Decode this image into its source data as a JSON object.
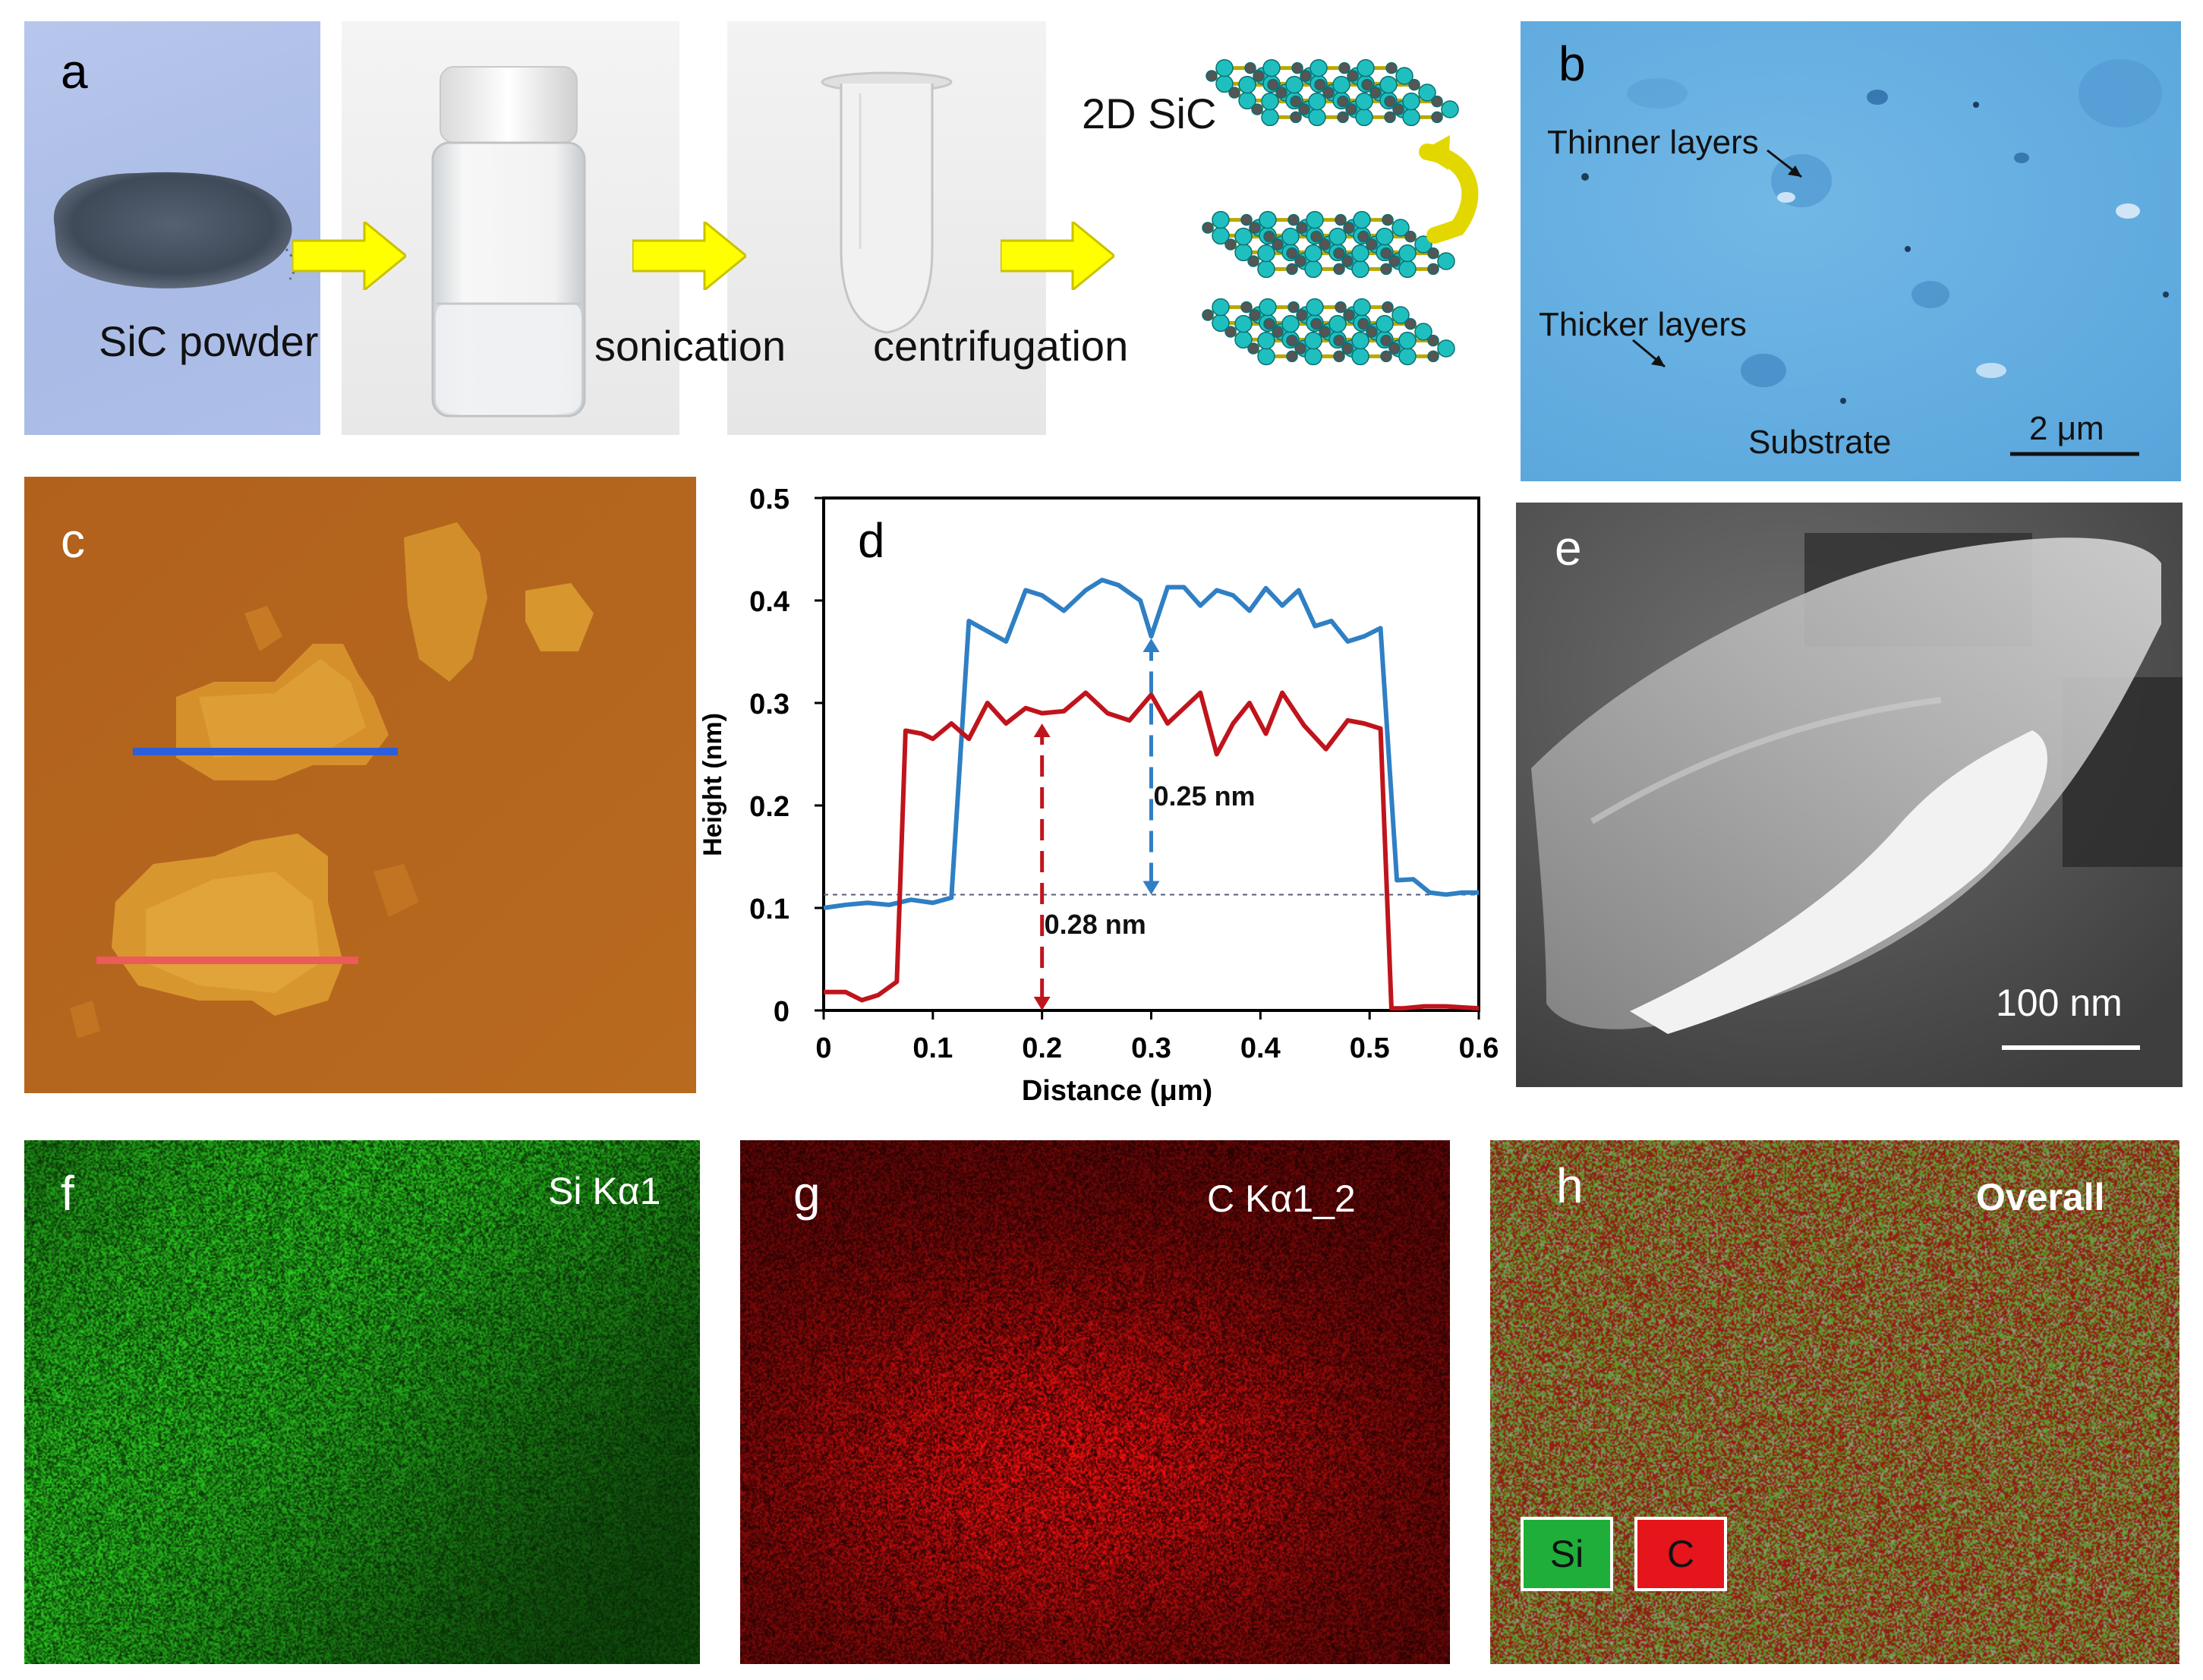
{
  "panels": {
    "a": {
      "letter": "a",
      "captions": {
        "powder": "SiC powder",
        "sonication": "sonication",
        "centrifugation": "centrifugation",
        "material": "2D SiC"
      }
    },
    "b": {
      "letter": "b",
      "labels": {
        "thinner": "Thinner layers",
        "thicker": "Thicker layers",
        "substrate": "Substrate"
      },
      "scale_bar": "2 μm"
    },
    "c": {
      "letter": "c"
    },
    "d": {
      "letter": "d"
    },
    "e": {
      "letter": "e",
      "scale_bar": "100 nm"
    },
    "f": {
      "letter": "f",
      "label": "Si Kα1"
    },
    "g": {
      "letter": "g",
      "label": "C Kα1_2"
    },
    "h": {
      "letter": "h",
      "label": "Overall",
      "legend": [
        "Si",
        "C"
      ]
    }
  },
  "colors": {
    "blue_profile": "#2f7fc4",
    "red_profile": "#c0141c",
    "afm_brown": "#b8621a",
    "si_green": "#1fae3a",
    "c_red": "#e4151b",
    "arrow_yellow": "#ffff00"
  },
  "chart_data": {
    "type": "line",
    "xlabel": "Distance (μm)",
    "ylabel": "Height (nm)",
    "xlim": [
      0,
      0.6
    ],
    "ylim": [
      0,
      0.5
    ],
    "xticks": [
      "0",
      "0.1",
      "0.2",
      "0.3",
      "0.4",
      "0.5",
      "0.6"
    ],
    "yticks": [
      "0",
      "0.1",
      "0.2",
      "0.3",
      "0.4",
      "0.5"
    ],
    "baseline_y": 0.113,
    "annotations": [
      {
        "text": "0.25 nm",
        "x": 0.3,
        "y_from": 0.113,
        "y_to": 0.363,
        "color": "blue"
      },
      {
        "text": "0.28 nm",
        "x": 0.2,
        "y_from": 0.0,
        "y_to": 0.28,
        "color": "red"
      }
    ],
    "series": [
      {
        "color": "blue",
        "x": [
          0,
          0.02,
          0.04,
          0.06,
          0.08,
          0.1,
          0.117,
          0.133,
          0.15,
          0.167,
          0.185,
          0.2,
          0.22,
          0.24,
          0.255,
          0.27,
          0.29,
          0.3,
          0.315,
          0.33,
          0.345,
          0.36,
          0.375,
          0.39,
          0.405,
          0.42,
          0.435,
          0.45,
          0.465,
          0.48,
          0.495,
          0.51,
          0.525,
          0.54,
          0.555,
          0.57,
          0.585,
          0.6
        ],
        "y": [
          0.1,
          0.103,
          0.105,
          0.103,
          0.108,
          0.105,
          0.11,
          0.38,
          0.37,
          0.36,
          0.41,
          0.405,
          0.39,
          0.41,
          0.42,
          0.415,
          0.4,
          0.365,
          0.413,
          0.413,
          0.395,
          0.41,
          0.405,
          0.39,
          0.412,
          0.395,
          0.41,
          0.375,
          0.38,
          0.36,
          0.365,
          0.373,
          0.127,
          0.128,
          0.115,
          0.113,
          0.115,
          0.115
        ]
      },
      {
        "color": "red",
        "x": [
          0,
          0.02,
          0.035,
          0.05,
          0.067,
          0.075,
          0.09,
          0.1,
          0.117,
          0.133,
          0.15,
          0.167,
          0.185,
          0.2,
          0.22,
          0.24,
          0.26,
          0.28,
          0.3,
          0.315,
          0.33,
          0.345,
          0.36,
          0.375,
          0.39,
          0.405,
          0.42,
          0.44,
          0.46,
          0.48,
          0.495,
          0.51,
          0.52,
          0.53,
          0.55,
          0.57,
          0.585,
          0.6
        ],
        "y": [
          0.018,
          0.018,
          0.01,
          0.015,
          0.028,
          0.273,
          0.27,
          0.265,
          0.28,
          0.265,
          0.3,
          0.28,
          0.295,
          0.29,
          0.292,
          0.31,
          0.29,
          0.283,
          0.308,
          0.28,
          0.295,
          0.31,
          0.25,
          0.28,
          0.3,
          0.27,
          0.31,
          0.278,
          0.255,
          0.283,
          0.28,
          0.275,
          0.002,
          0.002,
          0.004,
          0.004,
          0.003,
          0.002
        ]
      }
    ]
  }
}
